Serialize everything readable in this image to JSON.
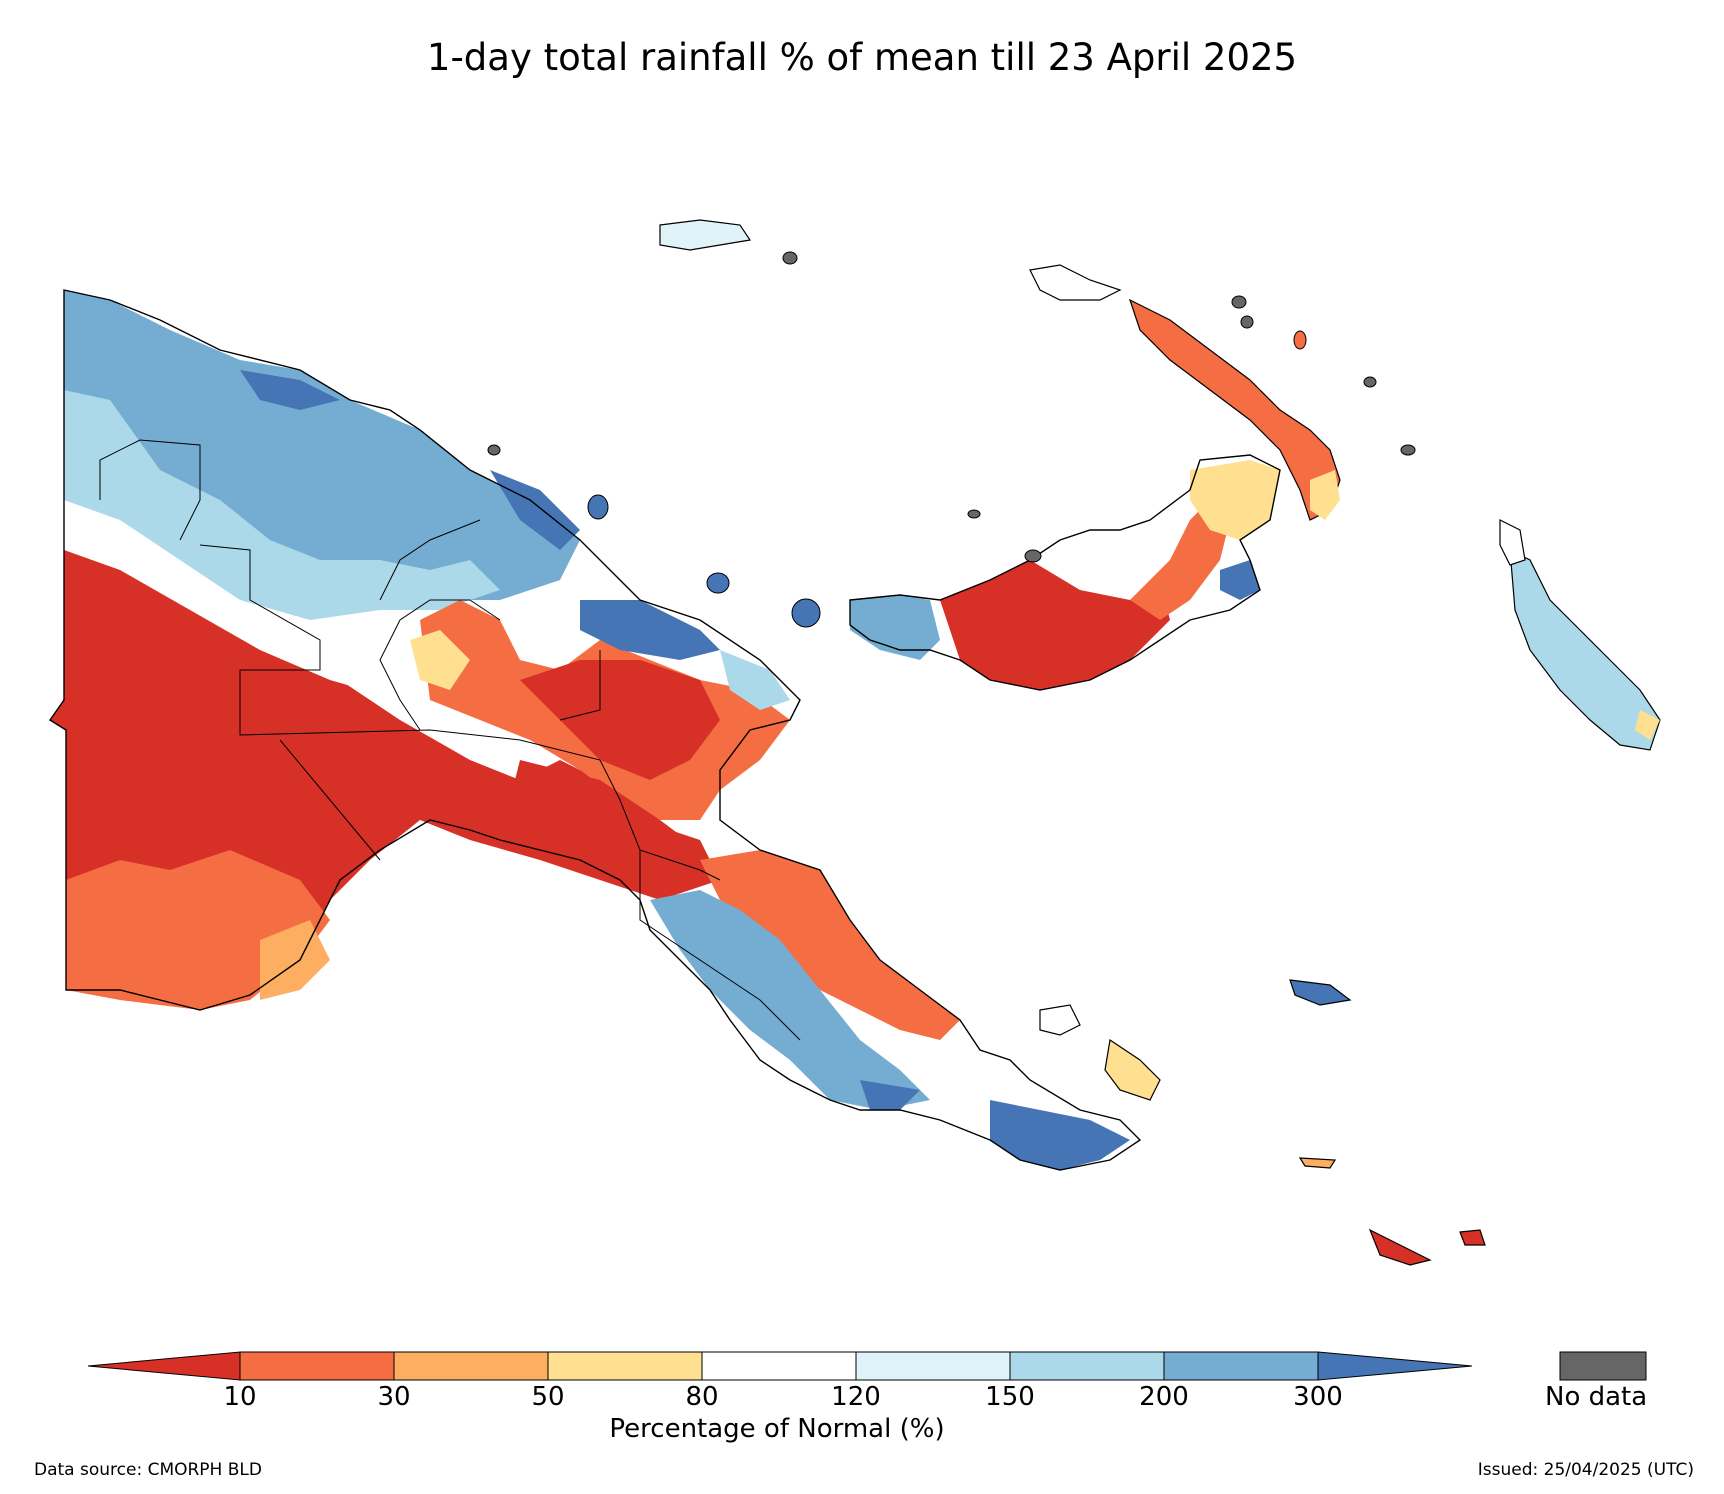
{
  "title": "1-day total rainfall % of mean till 23 April 2025",
  "colorbar": {
    "title": "Percentage of Normal (%)",
    "ticks": [
      "10",
      "30",
      "50",
      "80",
      "120",
      "150",
      "200",
      "300"
    ],
    "colors": {
      "below_10": "#d73027",
      "c10_30": "#f46d43",
      "c30_50": "#fdae61",
      "c50_80": "#fee090",
      "c80_120": "#ffffff",
      "c120_150": "#e0f3f8",
      "c150_200": "#abd9e9",
      "c200_300": "#74add1",
      "above_300": "#4575b4"
    },
    "no_data_label": "No data",
    "no_data_color": "#666666"
  },
  "footer": {
    "source": "Data source: CMORPH BLD",
    "issued": "Issued: 25/04/2025 (UTC)"
  }
}
